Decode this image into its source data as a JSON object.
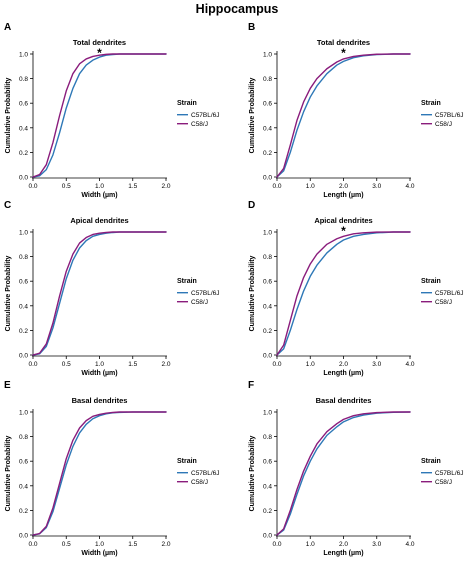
{
  "figure": {
    "title": "Hippocampus"
  },
  "colors": {
    "C57BL/6J": "#2e78b7",
    "C58/J": "#8a1c7c",
    "axis": "#000000"
  },
  "chart_data": [
    {
      "panel": "A",
      "type": "line",
      "title": "Total dendrites",
      "xlabel": "Width (µm)",
      "ylabel": "Cumulative Probability",
      "xlim": [
        0,
        2.0
      ],
      "ylim": [
        0,
        1.0
      ],
      "xticks": [
        "0.0",
        "0.5",
        "1.0",
        "1.5",
        "2.0"
      ],
      "yticks": [
        "0.0",
        "0.2",
        "0.4",
        "0.6",
        "0.8",
        "1.0"
      ],
      "legend": {
        "title": "Strain",
        "entries": [
          "C57BL/6J",
          "C58/J"
        ],
        "placement": "right"
      },
      "annotation": "*",
      "series": [
        {
          "name": "C57BL/6J",
          "x": [
            0.0,
            0.1,
            0.2,
            0.3,
            0.4,
            0.5,
            0.6,
            0.7,
            0.8,
            0.9,
            1.0,
            1.1,
            1.2,
            1.3,
            1.5,
            1.7,
            2.0
          ],
          "y": [
            0.0,
            0.01,
            0.06,
            0.18,
            0.36,
            0.56,
            0.72,
            0.84,
            0.91,
            0.95,
            0.975,
            0.99,
            0.995,
            1.0,
            1.0,
            1.0,
            1.0
          ]
        },
        {
          "name": "C58/J",
          "x": [
            0.0,
            0.1,
            0.2,
            0.3,
            0.4,
            0.5,
            0.6,
            0.7,
            0.8,
            0.9,
            1.0,
            1.1,
            1.2,
            1.3,
            1.5,
            1.7,
            2.0
          ],
          "y": [
            0.0,
            0.02,
            0.1,
            0.28,
            0.5,
            0.7,
            0.84,
            0.92,
            0.96,
            0.98,
            0.99,
            0.997,
            1.0,
            1.0,
            1.0,
            1.0,
            1.0
          ]
        }
      ]
    },
    {
      "panel": "B",
      "type": "line",
      "title": "Total dendrites",
      "xlabel": "Length (µm)",
      "ylabel": "Cumulative Probability",
      "xlim": [
        0,
        4.0
      ],
      "ylim": [
        0,
        1.0
      ],
      "xticks": [
        "0.0",
        "1.0",
        "2.0",
        "3.0",
        "4.0"
      ],
      "yticks": [
        "0.0",
        "0.2",
        "0.4",
        "0.6",
        "0.8",
        "1.0"
      ],
      "legend": {
        "title": "Strain",
        "entries": [
          "C57BL/6J",
          "C58/J"
        ],
        "placement": "right"
      },
      "annotation": "*",
      "series": [
        {
          "name": "C57BL/6J",
          "x": [
            0.0,
            0.2,
            0.4,
            0.6,
            0.8,
            1.0,
            1.2,
            1.5,
            1.8,
            2.0,
            2.3,
            2.6,
            3.0,
            3.5,
            4.0
          ],
          "y": [
            0.0,
            0.05,
            0.2,
            0.38,
            0.53,
            0.65,
            0.74,
            0.84,
            0.91,
            0.94,
            0.97,
            0.985,
            0.995,
            1.0,
            1.0
          ]
        },
        {
          "name": "C58/J",
          "x": [
            0.0,
            0.2,
            0.4,
            0.6,
            0.8,
            1.0,
            1.2,
            1.5,
            1.8,
            2.0,
            2.3,
            2.6,
            3.0,
            3.5,
            4.0
          ],
          "y": [
            0.0,
            0.07,
            0.26,
            0.46,
            0.61,
            0.72,
            0.8,
            0.88,
            0.935,
            0.96,
            0.98,
            0.99,
            0.998,
            1.0,
            1.0
          ]
        }
      ]
    },
    {
      "panel": "C",
      "type": "line",
      "title": "Apical dendrites",
      "xlabel": "Width (µm)",
      "ylabel": "Cumulative Probability",
      "xlim": [
        0,
        2.0
      ],
      "ylim": [
        0,
        1.0
      ],
      "xticks": [
        "0.0",
        "0.5",
        "1.0",
        "1.5",
        "2.0"
      ],
      "yticks": [
        "0.0",
        "0.2",
        "0.4",
        "0.6",
        "0.8",
        "1.0"
      ],
      "legend": {
        "title": "Strain",
        "entries": [
          "C57BL/6J",
          "C58/J"
        ],
        "placement": "right"
      },
      "annotation": "",
      "series": [
        {
          "name": "C57BL/6J",
          "x": [
            0.0,
            0.1,
            0.2,
            0.3,
            0.4,
            0.5,
            0.6,
            0.7,
            0.8,
            0.9,
            1.0,
            1.1,
            1.2,
            1.3,
            1.5,
            1.7,
            2.0
          ],
          "y": [
            0.0,
            0.01,
            0.07,
            0.22,
            0.42,
            0.62,
            0.77,
            0.87,
            0.93,
            0.965,
            0.98,
            0.99,
            0.996,
            1.0,
            1.0,
            1.0,
            1.0
          ]
        },
        {
          "name": "C58/J",
          "x": [
            0.0,
            0.1,
            0.2,
            0.3,
            0.4,
            0.5,
            0.6,
            0.7,
            0.8,
            0.9,
            1.0,
            1.1,
            1.2,
            1.3,
            1.5,
            1.7,
            2.0
          ],
          "y": [
            0.0,
            0.015,
            0.09,
            0.26,
            0.48,
            0.68,
            0.82,
            0.91,
            0.955,
            0.98,
            0.99,
            0.996,
            1.0,
            1.0,
            1.0,
            1.0,
            1.0
          ]
        }
      ]
    },
    {
      "panel": "D",
      "type": "line",
      "title": "Apical dendrites",
      "xlabel": "Length (µm)",
      "ylabel": "Cumulative Probability",
      "xlim": [
        0,
        4.0
      ],
      "ylim": [
        0,
        1.0
      ],
      "xticks": [
        "0.0",
        "1.0",
        "2.0",
        "3.0",
        "4.0"
      ],
      "yticks": [
        "0.0",
        "0.2",
        "0.4",
        "0.6",
        "0.8",
        "1.0"
      ],
      "legend": {
        "title": "Strain",
        "entries": [
          "C57BL/6J",
          "C58/J"
        ],
        "placement": "right"
      },
      "annotation": "*",
      "series": [
        {
          "name": "C57BL/6J",
          "x": [
            0.0,
            0.2,
            0.4,
            0.6,
            0.8,
            1.0,
            1.2,
            1.5,
            1.8,
            2.0,
            2.3,
            2.6,
            3.0,
            3.5,
            4.0
          ],
          "y": [
            0.0,
            0.05,
            0.2,
            0.37,
            0.52,
            0.64,
            0.73,
            0.83,
            0.9,
            0.935,
            0.965,
            0.98,
            0.993,
            1.0,
            1.0
          ]
        },
        {
          "name": "C58/J",
          "x": [
            0.0,
            0.2,
            0.4,
            0.6,
            0.8,
            1.0,
            1.2,
            1.5,
            1.8,
            2.0,
            2.3,
            2.6,
            3.0,
            3.5,
            4.0
          ],
          "y": [
            0.0,
            0.08,
            0.28,
            0.48,
            0.63,
            0.74,
            0.82,
            0.9,
            0.945,
            0.965,
            0.985,
            0.993,
            0.999,
            1.0,
            1.0
          ]
        }
      ]
    },
    {
      "panel": "E",
      "type": "line",
      "title": "Basal dendrites",
      "xlabel": "Width (µm)",
      "ylabel": "Cumulative Probability",
      "xlim": [
        0,
        2.0
      ],
      "ylim": [
        0,
        1.0
      ],
      "xticks": [
        "0.0",
        "0.5",
        "1.0",
        "1.5",
        "2.0"
      ],
      "yticks": [
        "0.0",
        "0.2",
        "0.4",
        "0.6",
        "0.8",
        "1.0"
      ],
      "legend": {
        "title": "Strain",
        "entries": [
          "C57BL/6J",
          "C58/J"
        ],
        "placement": "right"
      },
      "annotation": "",
      "series": [
        {
          "name": "C57BL/6J",
          "x": [
            0.0,
            0.1,
            0.2,
            0.3,
            0.4,
            0.5,
            0.6,
            0.7,
            0.8,
            0.9,
            1.0,
            1.1,
            1.2,
            1.3,
            1.5,
            1.7,
            2.0
          ],
          "y": [
            0.0,
            0.01,
            0.06,
            0.19,
            0.38,
            0.57,
            0.72,
            0.83,
            0.9,
            0.945,
            0.97,
            0.985,
            0.993,
            0.997,
            1.0,
            1.0,
            1.0
          ]
        },
        {
          "name": "C58/J",
          "x": [
            0.0,
            0.1,
            0.2,
            0.3,
            0.4,
            0.5,
            0.6,
            0.7,
            0.8,
            0.9,
            1.0,
            1.1,
            1.2,
            1.3,
            1.5,
            1.7,
            2.0
          ],
          "y": [
            0.0,
            0.012,
            0.07,
            0.22,
            0.42,
            0.62,
            0.77,
            0.87,
            0.93,
            0.965,
            0.98,
            0.99,
            0.996,
            1.0,
            1.0,
            1.0,
            1.0
          ]
        }
      ]
    },
    {
      "panel": "F",
      "type": "line",
      "title": "Basal dendrites",
      "xlabel": "Length (µm)",
      "ylabel": "Cumulative Probability",
      "xlim": [
        0,
        4.0
      ],
      "ylim": [
        0,
        1.0
      ],
      "xticks": [
        "0.0",
        "1.0",
        "2.0",
        "3.0",
        "4.0"
      ],
      "yticks": [
        "0.0",
        "0.2",
        "0.4",
        "0.6",
        "0.8",
        "1.0"
      ],
      "legend": {
        "title": "Strain",
        "entries": [
          "C57BL/6J",
          "C58/J"
        ],
        "placement": "right"
      },
      "annotation": "",
      "series": [
        {
          "name": "C57BL/6J",
          "x": [
            0.0,
            0.2,
            0.4,
            0.6,
            0.8,
            1.0,
            1.2,
            1.5,
            1.8,
            2.0,
            2.3,
            2.6,
            3.0,
            3.5,
            4.0
          ],
          "y": [
            0.0,
            0.04,
            0.17,
            0.33,
            0.48,
            0.6,
            0.7,
            0.81,
            0.88,
            0.92,
            0.955,
            0.975,
            0.99,
            0.998,
            1.0
          ]
        },
        {
          "name": "C58/J",
          "x": [
            0.0,
            0.2,
            0.4,
            0.6,
            0.8,
            1.0,
            1.2,
            1.5,
            1.8,
            2.0,
            2.3,
            2.6,
            3.0,
            3.5,
            4.0
          ],
          "y": [
            0.0,
            0.05,
            0.2,
            0.37,
            0.52,
            0.64,
            0.74,
            0.84,
            0.905,
            0.94,
            0.97,
            0.985,
            0.995,
            1.0,
            1.0
          ]
        }
      ]
    }
  ]
}
